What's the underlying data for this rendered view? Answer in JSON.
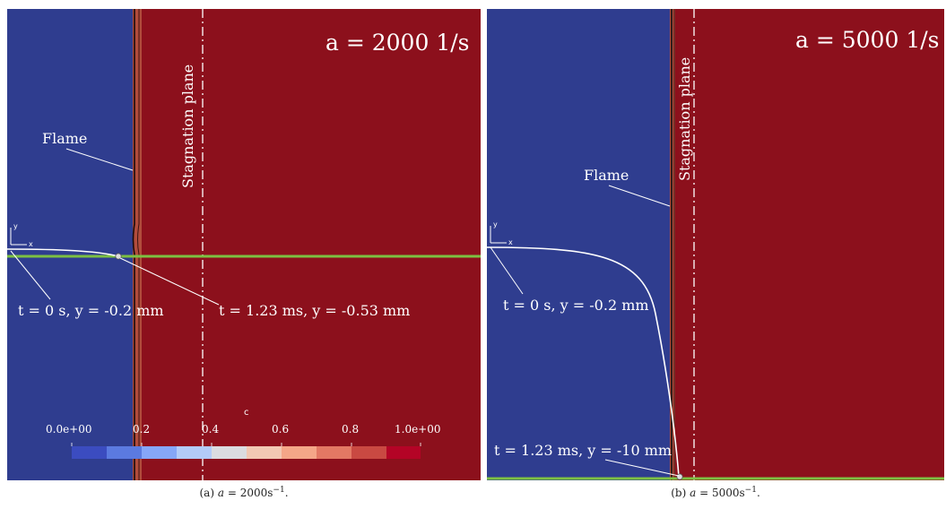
{
  "panels": [
    {
      "strain_label": "a = 2000 1/s",
      "flame_label": "Flame",
      "stagnation_label": "Stagnation plane",
      "start_label": "t = 0 s, y = -0.2 mm",
      "end_label": "t = 1.23 ms, y = -0.53 mm",
      "axis_y": "y",
      "axis_x": "x",
      "caption_prefix": "(a)",
      "caption_var": "a",
      "caption_value": "2000",
      "caption_unit": "s",
      "caption_exp": "−1"
    },
    {
      "strain_label": "a = 5000 1/s",
      "flame_label": "Flame",
      "stagnation_label": "Stagnation plane",
      "start_label": "t = 0 s, y = -0.2 mm",
      "end_label": "t = 1.23 ms, y = -10 mm",
      "axis_y": "y",
      "axis_x": "x",
      "caption_prefix": "(b)",
      "caption_var": "a",
      "caption_value": "5000",
      "caption_unit": "s",
      "caption_exp": "−1"
    }
  ],
  "colorbar": {
    "title": "c",
    "tick_labels": [
      "0.0e+00",
      "0.2",
      "0.4",
      "0.6",
      "0.8",
      "1.0e+00"
    ],
    "colors": [
      "#3b4cc0",
      "#5b7ae0",
      "#86a6f8",
      "#b3cbf8",
      "#dbdce0",
      "#f2c8b3",
      "#f4a688",
      "#e37864",
      "#c94942",
      "#b40426"
    ]
  },
  "colors": {
    "unburnt": "#2f3d8f",
    "burnt": "#8c101c",
    "flame_front": "#b14c3c",
    "line_green": "#7cc042",
    "trajectory": "#ffffff"
  }
}
